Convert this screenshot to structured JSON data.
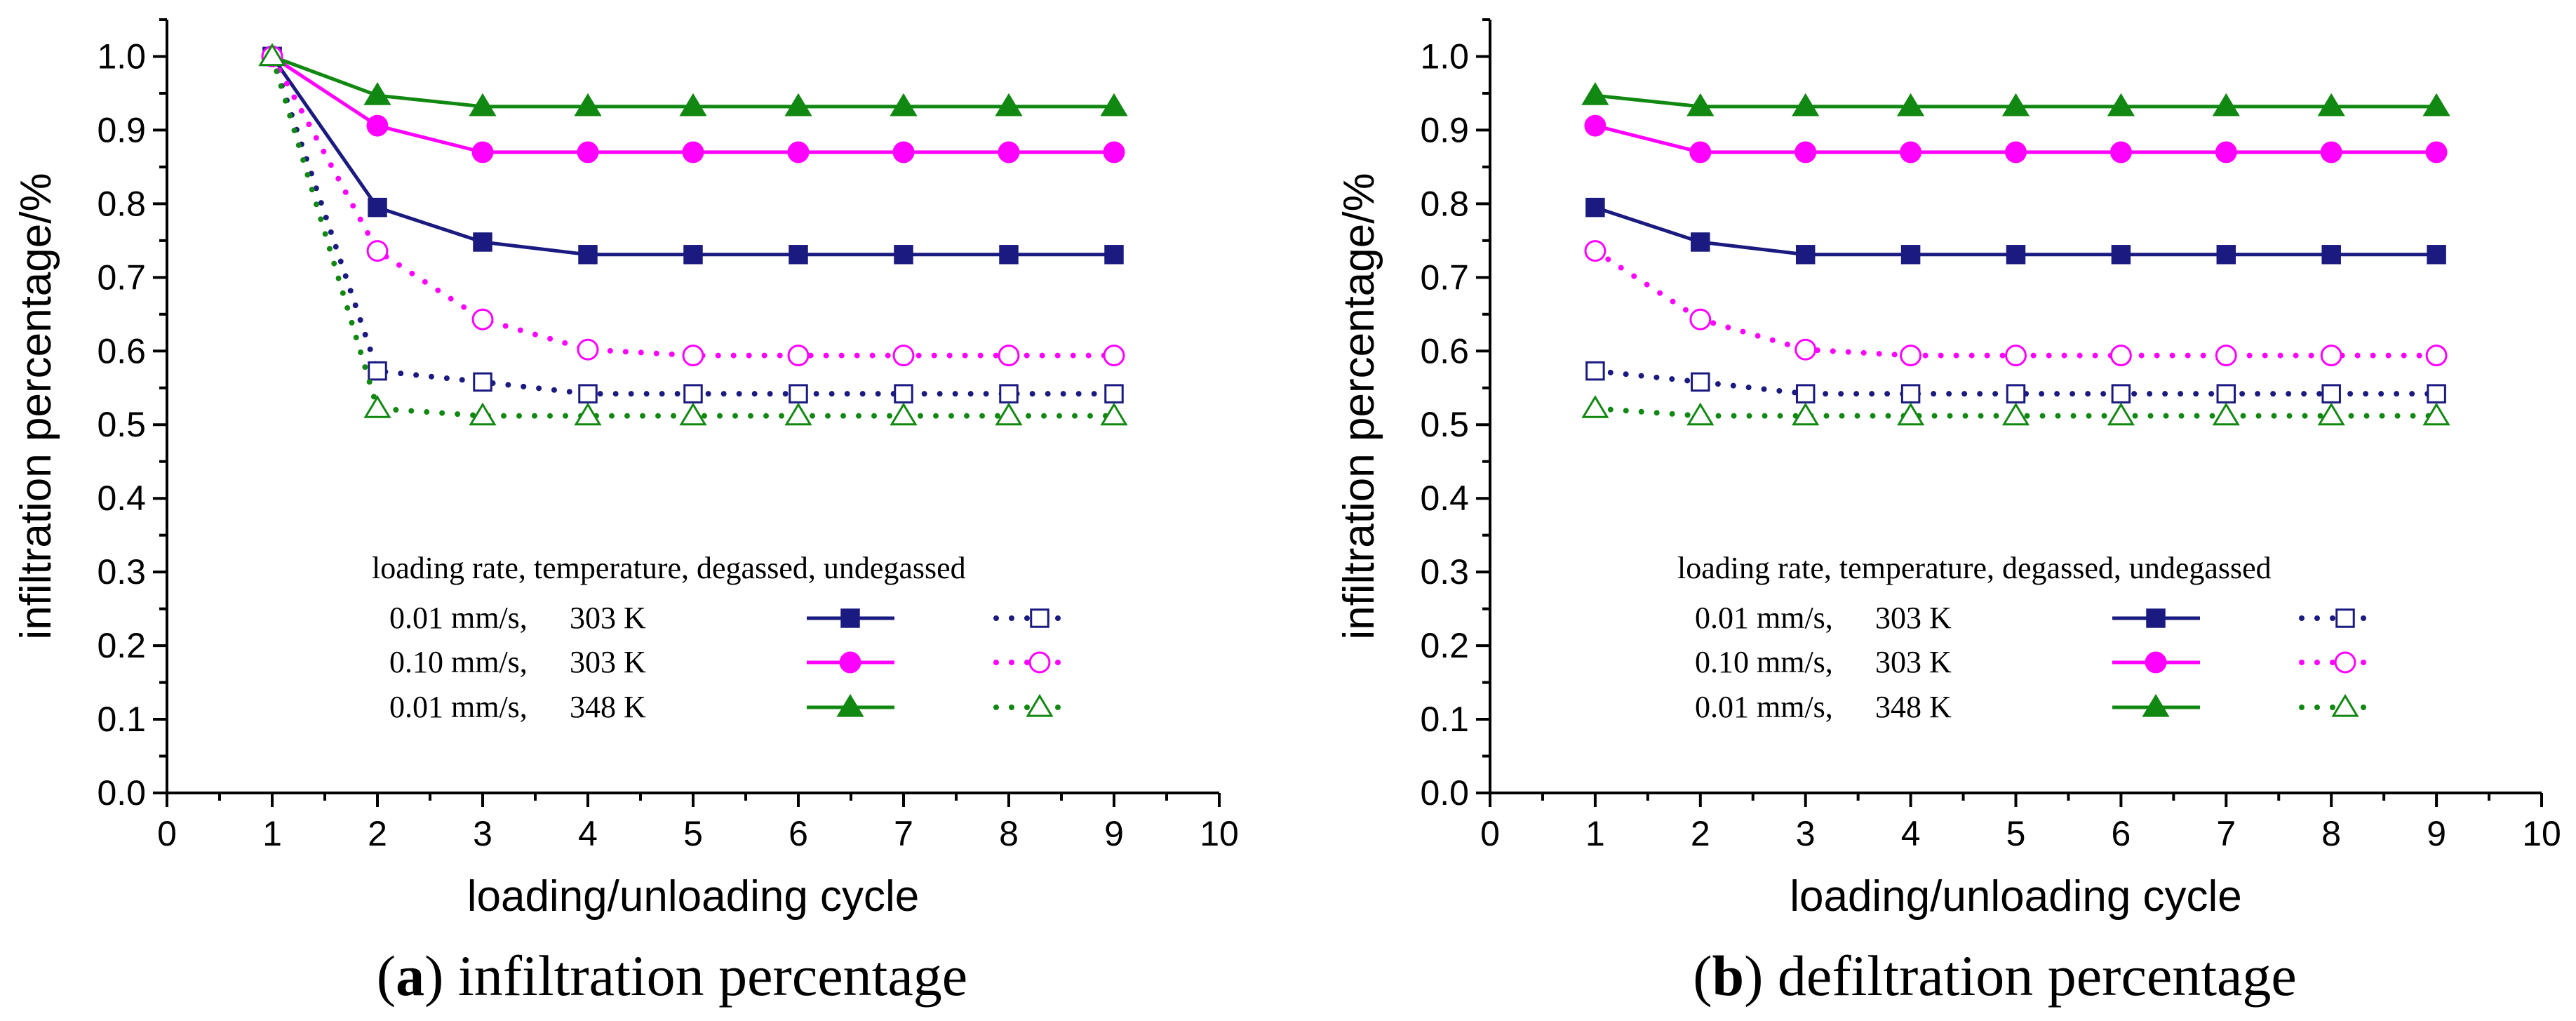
{
  "chart_data": [
    {
      "type": "line",
      "panel_letter": "a",
      "caption": "infiltration percentage",
      "xlabel": "loading/unloading cycle",
      "ylabel": "infiltration percentage/%",
      "xlim": [
        0,
        10
      ],
      "ylim": [
        0,
        1.05
      ],
      "xticks": [
        0,
        1,
        2,
        3,
        4,
        5,
        6,
        7,
        8,
        9,
        10
      ],
      "yticks": [
        0.0,
        0.1,
        0.2,
        0.3,
        0.4,
        0.5,
        0.6,
        0.7,
        0.8,
        0.9,
        1.0
      ],
      "x": [
        1,
        2,
        3,
        4,
        5,
        6,
        7,
        8,
        9
      ],
      "series": [
        {
          "name": "0.01 mm/s, 303 K, degassed",
          "color": "#1a1a80",
          "marker": "square-filled",
          "dash": "solid",
          "values": [
            1.0,
            0.795,
            0.748,
            0.731,
            0.731,
            0.731,
            0.731,
            0.731,
            0.731
          ]
        },
        {
          "name": "0.10 mm/s, 303 K, degassed",
          "color": "#ff00ff",
          "marker": "circle-filled",
          "dash": "solid",
          "values": [
            1.0,
            0.906,
            0.87,
            0.87,
            0.87,
            0.87,
            0.87,
            0.87,
            0.87
          ]
        },
        {
          "name": "0.01 mm/s, 348 K, degassed",
          "color": "#118811",
          "marker": "triangle-filled",
          "dash": "solid",
          "values": [
            1.0,
            0.947,
            0.932,
            0.932,
            0.932,
            0.932,
            0.932,
            0.932,
            0.932
          ]
        },
        {
          "name": "0.01 mm/s, 303 K, undegassed",
          "color": "#1a1a80",
          "marker": "square-open",
          "dash": "dotted",
          "values": [
            1.0,
            0.573,
            0.558,
            0.542,
            0.542,
            0.542,
            0.542,
            0.542,
            0.542
          ]
        },
        {
          "name": "0.10 mm/s, 303 K, undegassed",
          "color": "#ff00ff",
          "marker": "circle-open",
          "dash": "dotted",
          "values": [
            1.0,
            0.736,
            0.643,
            0.602,
            0.594,
            0.594,
            0.594,
            0.594,
            0.594
          ]
        },
        {
          "name": "0.01 mm/s, 348 K, undegassed",
          "color": "#118811",
          "marker": "triangle-open",
          "dash": "dotted",
          "values": [
            1.0,
            0.522,
            0.512,
            0.512,
            0.512,
            0.512,
            0.512,
            0.512,
            0.512
          ]
        }
      ],
      "legend": {
        "header": "loading rate, temperature, degassed, undegassed",
        "rows": [
          {
            "rate": "0.01 mm/s,",
            "temp": "303 K"
          },
          {
            "rate": "0.10 mm/s,",
            "temp": "303 K"
          },
          {
            "rate": "0.01 mm/s,",
            "temp": "348 K"
          }
        ],
        "placement": "lower-center"
      }
    },
    {
      "type": "line",
      "panel_letter": "b",
      "caption": "defiltration percentage",
      "xlabel": "loading/unloading cycle",
      "ylabel": "infiltration percentage/%",
      "xlim": [
        0,
        10
      ],
      "ylim": [
        0,
        1.05
      ],
      "xticks": [
        0,
        1,
        2,
        3,
        4,
        5,
        6,
        7,
        8,
        9,
        10
      ],
      "yticks": [
        0.0,
        0.1,
        0.2,
        0.3,
        0.4,
        0.5,
        0.6,
        0.7,
        0.8,
        0.9,
        1.0
      ],
      "x": [
        1,
        2,
        3,
        4,
        5,
        6,
        7,
        8,
        9
      ],
      "series": [
        {
          "name": "0.01 mm/s, 303 K, degassed",
          "color": "#1a1a80",
          "marker": "square-filled",
          "dash": "solid",
          "values": [
            0.795,
            0.748,
            0.731,
            0.731,
            0.731,
            0.731,
            0.731,
            0.731,
            0.731
          ]
        },
        {
          "name": "0.10 mm/s, 303 K, degassed",
          "color": "#ff00ff",
          "marker": "circle-filled",
          "dash": "solid",
          "values": [
            0.906,
            0.87,
            0.87,
            0.87,
            0.87,
            0.87,
            0.87,
            0.87,
            0.87
          ]
        },
        {
          "name": "0.01 mm/s, 348 K, degassed",
          "color": "#118811",
          "marker": "triangle-filled",
          "dash": "solid",
          "values": [
            0.947,
            0.932,
            0.932,
            0.932,
            0.932,
            0.932,
            0.932,
            0.932,
            0.932
          ]
        },
        {
          "name": "0.01 mm/s, 303 K, undegassed",
          "color": "#1a1a80",
          "marker": "square-open",
          "dash": "dotted",
          "values": [
            0.573,
            0.558,
            0.542,
            0.542,
            0.542,
            0.542,
            0.542,
            0.542,
            0.542
          ]
        },
        {
          "name": "0.10 mm/s, 303 K, undegassed",
          "color": "#ff00ff",
          "marker": "circle-open",
          "dash": "dotted",
          "values": [
            0.736,
            0.643,
            0.602,
            0.594,
            0.594,
            0.594,
            0.594,
            0.594,
            0.594
          ]
        },
        {
          "name": "0.01 mm/s, 348 K, undegassed",
          "color": "#118811",
          "marker": "triangle-open",
          "dash": "dotted",
          "values": [
            0.522,
            0.512,
            0.512,
            0.512,
            0.512,
            0.512,
            0.512,
            0.512,
            0.512
          ]
        }
      ],
      "legend": {
        "header": "loading rate, temperature, degassed, undegassed",
        "rows": [
          {
            "rate": "0.01 mm/s,",
            "temp": "303 K"
          },
          {
            "rate": "0.10 mm/s,",
            "temp": "303 K"
          },
          {
            "rate": "0.01 mm/s,",
            "temp": "348 K"
          }
        ],
        "placement": "lower-center"
      }
    }
  ]
}
